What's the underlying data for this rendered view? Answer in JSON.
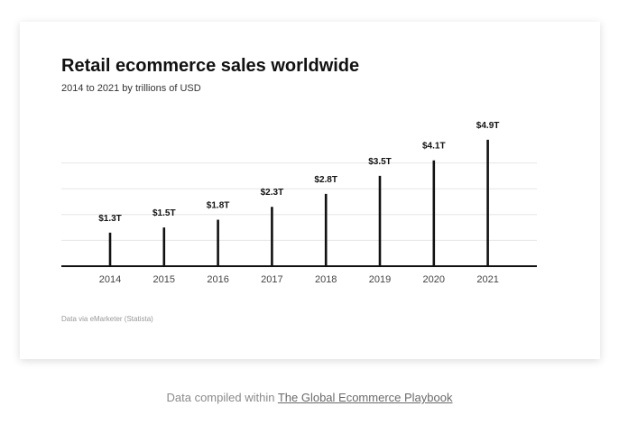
{
  "chart_data": {
    "type": "bar",
    "title": "Retail ecommerce sales worldwide",
    "subtitle": "2014 to 2021 by trillions of USD",
    "categories": [
      "2014",
      "2015",
      "2016",
      "2017",
      "2018",
      "2019",
      "2020",
      "2021"
    ],
    "values": [
      1.3,
      1.5,
      1.8,
      2.3,
      2.8,
      3.5,
      4.1,
      4.9
    ],
    "data_labels": [
      "$1.3T",
      "$1.5T",
      "$1.8T",
      "$2.3T",
      "$2.8T",
      "$3.5T",
      "$4.1T",
      "$4.9T"
    ],
    "xlabel": "",
    "ylabel": "",
    "ylim": [
      0,
      5
    ],
    "grid": true,
    "bar_color": "#111111",
    "grid_color": "#e6e6e6"
  },
  "source_note": "Data via eMarketer (Statista)",
  "caption": {
    "prefix": "Data compiled within ",
    "link_text": "The Global Ecommerce Playbook"
  }
}
